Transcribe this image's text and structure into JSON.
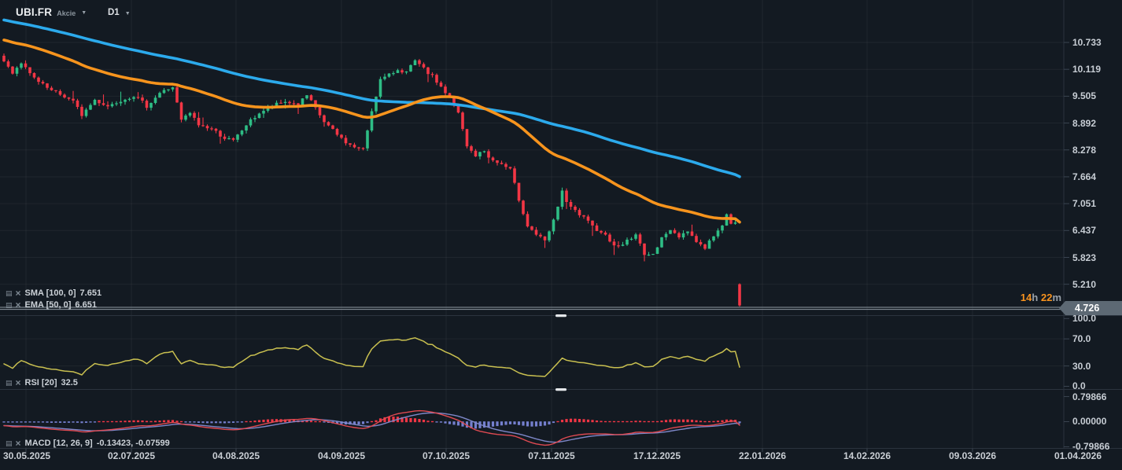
{
  "header": {
    "symbol": "UBI.FR",
    "instrument_type": "Akcie",
    "timeframe": "D1"
  },
  "icons": {
    "settings": "▤",
    "remove": "×",
    "chevron_down": "▼"
  },
  "indicators": {
    "sma": {
      "label": "SMA [100, 0]",
      "value": "7.651"
    },
    "ema": {
      "label": "EMA [50, 0]",
      "value": "6.651"
    },
    "rsi": {
      "label": "RSI [20]",
      "value": "32.5"
    },
    "macd": {
      "label": "MACD [12, 26, 9]",
      "value": "-0.13423,  -0.07599"
    }
  },
  "price_axis": {
    "ticks": [
      "10.733",
      "10.119",
      "9.505",
      "8.892",
      "8.278",
      "7.664",
      "7.051",
      "6.437",
      "5.823",
      "5.210"
    ],
    "current_price": "4.726"
  },
  "rsi_axis": {
    "ticks": [
      "100.0",
      "70.0",
      "30.0",
      "0.0"
    ]
  },
  "macd_axis": {
    "ticks": [
      "0.79866",
      "0.00000",
      "-0.79866"
    ]
  },
  "countdown": {
    "hours": "14",
    "hours_unit": "h",
    "minutes": "22",
    "minutes_unit": "m"
  },
  "colors": {
    "background": "#131a22",
    "bull": "#2ebd85",
    "bear": "#f23645",
    "sma": "#2caaec",
    "ema": "#f7941d",
    "rsi_line": "#c9c050",
    "macd_line": "#e04a52",
    "macd_signal": "#7d87c8",
    "hist_positive": "#f23645",
    "hist_negative": "#7580cf",
    "price_tag": "#5d6974",
    "countdown_accent": "#f7921e",
    "axis_text": "#c7cdd4",
    "grid": "rgba(255,255,255,0.05)",
    "separator": "#2b333e",
    "current_price_line": "#aeb9c2"
  },
  "chart_data": {
    "type": "candlestick",
    "title": "UBI.FR daily candlestick chart with SMA(100), EMA(50), RSI(20) and MACD(12,26,9)",
    "timeframe": "D1",
    "visible_bars": 171,
    "price_axis_ticks": [
      10.733,
      10.119,
      9.505,
      8.892,
      8.278,
      7.664,
      7.051,
      6.437,
      5.823,
      5.21
    ],
    "current_price": 4.726,
    "ylim": [
      4.6,
      11.3
    ],
    "grid": true,
    "legend_position": "top-left",
    "close_anchors": [
      [
        0,
        10.3
      ],
      [
        2,
        10.05
      ],
      [
        4,
        10.28
      ],
      [
        6,
        10.0
      ],
      [
        8,
        9.82
      ],
      [
        11,
        9.62
      ],
      [
        14,
        9.5
      ],
      [
        16,
        9.38
      ],
      [
        18,
        9.08
      ],
      [
        21,
        9.42
      ],
      [
        24,
        9.28
      ],
      [
        27,
        9.42
      ],
      [
        30,
        9.52
      ],
      [
        33,
        9.28
      ],
      [
        36,
        9.58
      ],
      [
        39,
        9.72
      ],
      [
        41,
        8.95
      ],
      [
        43,
        9.12
      ],
      [
        45,
        8.85
      ],
      [
        48,
        8.76
      ],
      [
        51,
        8.55
      ],
      [
        53,
        8.48
      ],
      [
        56,
        8.85
      ],
      [
        59,
        9.12
      ],
      [
        62,
        9.28
      ],
      [
        65,
        9.38
      ],
      [
        68,
        9.32
      ],
      [
        70,
        9.52
      ],
      [
        72,
        9.22
      ],
      [
        74,
        8.92
      ],
      [
        77,
        8.62
      ],
      [
        80,
        8.38
      ],
      [
        83,
        8.28
      ],
      [
        85,
        9.18
      ],
      [
        87,
        9.88
      ],
      [
        89,
        9.98
      ],
      [
        91,
        10.12
      ],
      [
        93,
        10.05
      ],
      [
        95,
        10.3
      ],
      [
        97,
        10.12
      ],
      [
        99,
        9.95
      ],
      [
        101,
        9.72
      ],
      [
        103,
        9.45
      ],
      [
        105,
        9.12
      ],
      [
        107,
        8.35
      ],
      [
        109,
        8.15
      ],
      [
        111,
        8.25
      ],
      [
        113,
        8.02
      ],
      [
        115,
        7.95
      ],
      [
        117,
        7.82
      ],
      [
        119,
        7.15
      ],
      [
        121,
        6.55
      ],
      [
        123,
        6.35
      ],
      [
        125,
        6.18
      ],
      [
        127,
        6.65
      ],
      [
        129,
        7.35
      ],
      [
        130,
        7.05
      ],
      [
        132,
        6.88
      ],
      [
        134,
        6.72
      ],
      [
        136,
        6.52
      ],
      [
        138,
        6.42
      ],
      [
        140,
        6.22
      ],
      [
        142,
        6.05
      ],
      [
        144,
        6.22
      ],
      [
        146,
        6.32
      ],
      [
        148,
        5.92
      ],
      [
        150,
        5.86
      ],
      [
        152,
        6.32
      ],
      [
        154,
        6.42
      ],
      [
        156,
        6.3
      ],
      [
        158,
        6.45
      ],
      [
        160,
        6.18
      ],
      [
        162,
        6.05
      ],
      [
        164,
        6.32
      ],
      [
        166,
        6.52
      ],
      [
        167,
        6.85
      ],
      [
        168,
        6.62
      ],
      [
        169,
        6.6
      ],
      [
        170,
        4.726
      ]
    ],
    "last_candle": {
      "open": 5.21,
      "high": 5.23,
      "low": 4.7,
      "close": 4.726
    },
    "prehistory": {
      "bars": 110,
      "start_price": 12.35,
      "end_price": 10.35
    },
    "overlays": [
      {
        "name": "SMA",
        "period": 100,
        "offset": 0,
        "last_value": 7.651,
        "color": "#2caaec"
      },
      {
        "name": "EMA",
        "period": 50,
        "offset": 0,
        "last_value": 6.651,
        "color": "#f7941d"
      }
    ],
    "rsi": {
      "period": 20,
      "last_value": 32.5,
      "axis_ticks": [
        100.0,
        70.0,
        30.0,
        0.0
      ]
    },
    "macd": {
      "fast": 12,
      "slow": 26,
      "signal": 9,
      "last_macd": -0.13423,
      "last_signal": -0.07599,
      "axis_ticks": [
        0.79866,
        0.0,
        -0.79866
      ]
    },
    "x_axis_dates": [
      "30.05.2025",
      "02.07.2025",
      "04.08.2025",
      "04.09.2025",
      "07.10.2025",
      "07.11.2025",
      "17.12.2025",
      "22.01.2026",
      "14.02.2026",
      "09.03.2026",
      "01.04.2026"
    ]
  }
}
